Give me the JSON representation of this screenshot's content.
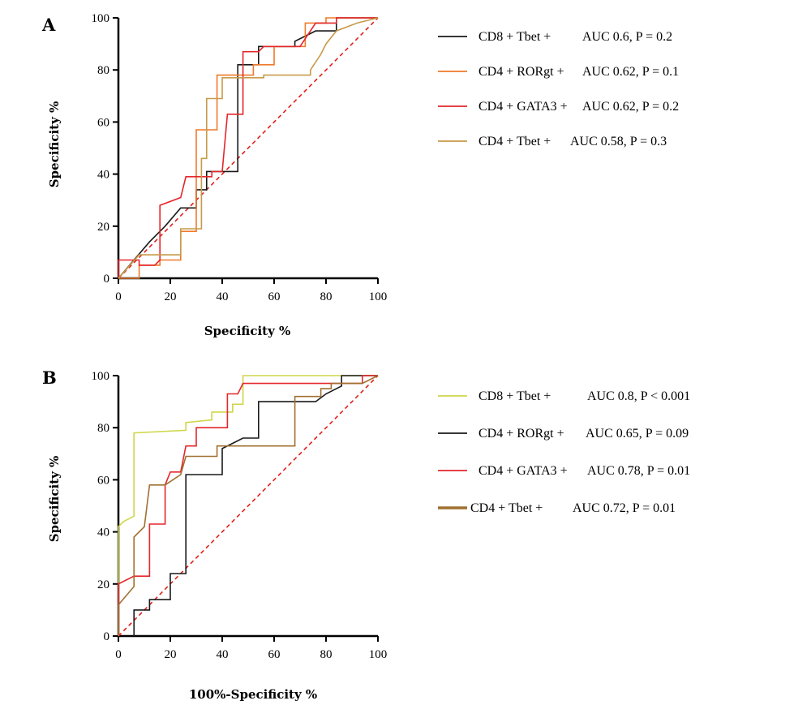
{
  "chart_data": [
    {
      "type": "line",
      "panel_label": "A",
      "xlabel": "Specificity %",
      "ylabel": "Specificity %",
      "xlim": [
        0,
        100
      ],
      "ylim": [
        0,
        100
      ],
      "x_ticks": [
        "0",
        "20",
        "40",
        "60",
        "80",
        "100"
      ],
      "y_ticks": [
        "0",
        "20",
        "40",
        "60",
        "80",
        "100"
      ],
      "grid": false,
      "legend_position": "right",
      "reference_line": {
        "style": "dashed",
        "color": "#e0201a",
        "from": [
          0,
          0
        ],
        "to": [
          100,
          100
        ]
      },
      "series": [
        {
          "name": "CD8 + Tbet +",
          "stat": "AUC 0.6, P = 0.2",
          "color": "#1a1a1a",
          "points": [
            [
              0,
              0
            ],
            [
              6,
              7
            ],
            [
              12,
              14
            ],
            [
              18,
              20
            ],
            [
              24,
              27
            ],
            [
              27,
              27
            ],
            [
              30,
              27
            ],
            [
              30,
              34
            ],
            [
              34,
              34
            ],
            [
              34,
              41
            ],
            [
              40,
              41
            ],
            [
              40,
              41
            ],
            [
              46,
              41
            ],
            [
              46,
              82
            ],
            [
              50,
              82
            ],
            [
              54,
              82
            ],
            [
              54,
              89
            ],
            [
              60,
              89
            ],
            [
              68,
              89
            ],
            [
              68,
              91
            ],
            [
              76,
              95
            ],
            [
              84,
              95
            ],
            [
              84,
              100
            ],
            [
              100,
              100
            ]
          ]
        },
        {
          "name": "CD4 + RORgt +",
          "stat": "AUC 0.62, P = 0.1",
          "color": "#ef7a2a",
          "points": [
            [
              0,
              0
            ],
            [
              8,
              0
            ],
            [
              8,
              5
            ],
            [
              12,
              5
            ],
            [
              16,
              5
            ],
            [
              16,
              7
            ],
            [
              24,
              7
            ],
            [
              24,
              18
            ],
            [
              30,
              18
            ],
            [
              30,
              57
            ],
            [
              38,
              57
            ],
            [
              38,
              78
            ],
            [
              48,
              78
            ],
            [
              48,
              78
            ],
            [
              52,
              78
            ],
            [
              52,
              82
            ],
            [
              60,
              82
            ],
            [
              60,
              89
            ],
            [
              68,
              89
            ],
            [
              72,
              89
            ],
            [
              72,
              98
            ],
            [
              80,
              98
            ],
            [
              80,
              100
            ],
            [
              100,
              100
            ]
          ]
        },
        {
          "name": "CD4 + GATA3 +",
          "stat": "AUC 0.62, P = 0.2",
          "color": "#e3272b",
          "points": [
            [
              0,
              0
            ],
            [
              0,
              7
            ],
            [
              8,
              7
            ],
            [
              8,
              5
            ],
            [
              14,
              5
            ],
            [
              16,
              7
            ],
            [
              16,
              28
            ],
            [
              24,
              31
            ],
            [
              26,
              39
            ],
            [
              36,
              39
            ],
            [
              36,
              41
            ],
            [
              40,
              41
            ],
            [
              42,
              63
            ],
            [
              48,
              63
            ],
            [
              48,
              87
            ],
            [
              54,
              87
            ],
            [
              56,
              89
            ],
            [
              64,
              89
            ],
            [
              70,
              89
            ],
            [
              76,
              98
            ],
            [
              84,
              98
            ],
            [
              84,
              100
            ],
            [
              100,
              100
            ]
          ]
        },
        {
          "name": "CD4 + Tbet +",
          "stat": "AUC 0.58, P = 0.3",
          "color": "#c79a4a",
          "points": [
            [
              0,
              0
            ],
            [
              8,
              9
            ],
            [
              24,
              9
            ],
            [
              24,
              19
            ],
            [
              32,
              19
            ],
            [
              32,
              46
            ],
            [
              34,
              46
            ],
            [
              34,
              69
            ],
            [
              40,
              69
            ],
            [
              40,
              77
            ],
            [
              50,
              77
            ],
            [
              56,
              77
            ],
            [
              56,
              78
            ],
            [
              74,
              78
            ],
            [
              74,
              80
            ],
            [
              78,
              86
            ],
            [
              80,
              90
            ],
            [
              84,
              95
            ],
            [
              92,
              98
            ],
            [
              100,
              100
            ]
          ]
        }
      ]
    },
    {
      "type": "line",
      "panel_label": "B",
      "xlabel": "100%-Specificity %",
      "ylabel": "Specificity %",
      "xlim": [
        0,
        100
      ],
      "ylim": [
        0,
        100
      ],
      "x_ticks": [
        "0",
        "20",
        "40",
        "60",
        "80",
        "100"
      ],
      "y_ticks": [
        "0",
        "20",
        "40",
        "60",
        "80",
        "100"
      ],
      "grid": false,
      "legend_position": "right",
      "reference_line": {
        "style": "dashed",
        "color": "#e0201a",
        "from": [
          0,
          0
        ],
        "to": [
          100,
          100
        ]
      },
      "series": [
        {
          "name": "CD8 + Tbet +",
          "stat": "AUC 0.8, P < 0.001",
          "color": "#cfd64a",
          "points": [
            [
              0,
              0
            ],
            [
              0,
              42
            ],
            [
              2,
              44
            ],
            [
              6,
              46
            ],
            [
              6,
              78
            ],
            [
              26,
              79
            ],
            [
              26,
              82
            ],
            [
              36,
              83
            ],
            [
              36,
              86
            ],
            [
              44,
              86
            ],
            [
              44,
              89
            ],
            [
              48,
              89
            ],
            [
              48,
              100
            ],
            [
              100,
              100
            ]
          ]
        },
        {
          "name": "CD4 + RORgt +",
          "stat": "AUC 0.65, P = 0.09",
          "color": "#1a1a1a",
          "points": [
            [
              6,
              0
            ],
            [
              6,
              10
            ],
            [
              12,
              10
            ],
            [
              12,
              14
            ],
            [
              20,
              14
            ],
            [
              20,
              24
            ],
            [
              26,
              24
            ],
            [
              26,
              62
            ],
            [
              40,
              62
            ],
            [
              40,
              72
            ],
            [
              44,
              74
            ],
            [
              48,
              76
            ],
            [
              54,
              76
            ],
            [
              54,
              90
            ],
            [
              76,
              90
            ],
            [
              80,
              93
            ],
            [
              86,
              96
            ],
            [
              86,
              100
            ],
            [
              100,
              100
            ]
          ]
        },
        {
          "name": "CD4 + GATA3 +",
          "stat": "AUC 0.78, P = 0.01",
          "color": "#e3272b",
          "points": [
            [
              0,
              0
            ],
            [
              0,
              20
            ],
            [
              6,
              23
            ],
            [
              12,
              23
            ],
            [
              12,
              43
            ],
            [
              18,
              43
            ],
            [
              18,
              58
            ],
            [
              20,
              63
            ],
            [
              24,
              63
            ],
            [
              26,
              73
            ],
            [
              30,
              73
            ],
            [
              30,
              80
            ],
            [
              42,
              80
            ],
            [
              42,
              93
            ],
            [
              46,
              93
            ],
            [
              48,
              97
            ],
            [
              84,
              97
            ],
            [
              94,
              97
            ],
            [
              94,
              100
            ],
            [
              100,
              100
            ]
          ]
        },
        {
          "name": "CD4 + Tbet +",
          "stat": "AUC 0.72, P = 0.01",
          "color": "#a07030",
          "points": [
            [
              0,
              0
            ],
            [
              0,
              12
            ],
            [
              6,
              19
            ],
            [
              6,
              38
            ],
            [
              10,
              42
            ],
            [
              12,
              58
            ],
            [
              18,
              58
            ],
            [
              24,
              62
            ],
            [
              26,
              69
            ],
            [
              38,
              69
            ],
            [
              38,
              73
            ],
            [
              68,
              73
            ],
            [
              68,
              92
            ],
            [
              78,
              92
            ],
            [
              78,
              95
            ],
            [
              82,
              95
            ],
            [
              82,
              97
            ],
            [
              94,
              97
            ],
            [
              100,
              100
            ]
          ]
        }
      ]
    }
  ]
}
